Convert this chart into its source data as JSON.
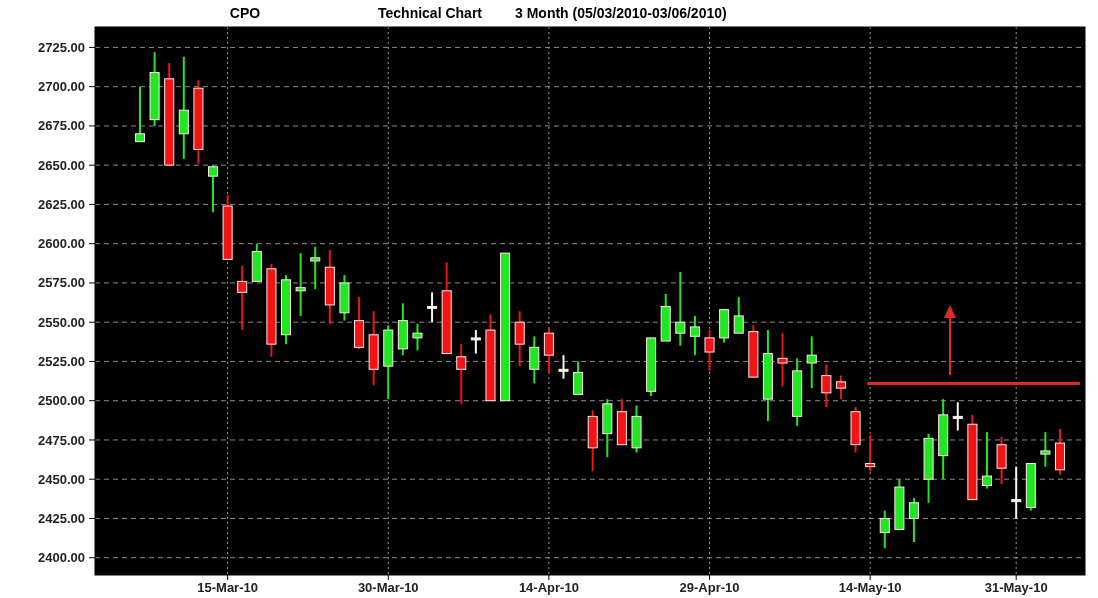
{
  "chart_data": {
    "type": "candlestick",
    "title": "CPO",
    "subtitle": "Technical Chart",
    "annotations": [
      "3 Month (05/03/2010-03/06/2010)"
    ],
    "categories": [
      null,
      null,
      null,
      null,
      null,
      null,
      "15-Mar-10",
      null,
      null,
      null,
      null,
      null,
      null,
      null,
      null,
      null,
      null,
      "30-Mar-10",
      null,
      null,
      null,
      null,
      null,
      null,
      null,
      null,
      null,
      null,
      "14-Apr-10",
      null,
      null,
      null,
      null,
      null,
      null,
      null,
      null,
      null,
      null,
      "29-Apr-10",
      null,
      null,
      null,
      null,
      null,
      null,
      null,
      null,
      null,
      null,
      "14-May-10",
      null,
      null,
      null,
      null,
      null,
      null,
      null,
      null,
      null,
      "31-May-10",
      null,
      null,
      null
    ],
    "ohlc": [
      [
        2665,
        2700,
        2665,
        2670
      ],
      [
        2679,
        2722,
        2675,
        2709
      ],
      [
        2705,
        2715,
        2650,
        2650
      ],
      [
        2670,
        2719,
        2654,
        2685
      ],
      [
        2699,
        2704,
        2651,
        2660
      ],
      [
        2643,
        2650,
        2620,
        2649
      ],
      [
        2624,
        2631,
        2590,
        2590
      ],
      [
        2576,
        2586,
        2545,
        2569
      ],
      [
        2576,
        2600,
        2576,
        2595
      ],
      [
        2584,
        2587,
        2528,
        2536
      ],
      [
        2542,
        2580,
        2536,
        2577
      ],
      [
        2570,
        2594,
        2554,
        2572
      ],
      [
        2589,
        2598,
        2571,
        2591
      ],
      [
        2585,
        2596,
        2549,
        2561
      ],
      [
        2556,
        2580,
        2551,
        2575
      ],
      [
        2551,
        2566,
        2533,
        2534
      ],
      [
        2542,
        2557,
        2510,
        2520
      ],
      [
        2522,
        2548,
        2501,
        2545
      ],
      [
        2533,
        2562,
        2529,
        2551
      ],
      [
        2540,
        2549,
        2532,
        2543
      ],
      [
        2560,
        2569,
        2550,
        2560
      ],
      [
        2570,
        2588,
        2530,
        2530
      ],
      [
        2528,
        2536,
        2498,
        2520
      ],
      [
        2540,
        2545,
        2530,
        2540
      ],
      [
        2545,
        2555,
        2500,
        2500
      ],
      [
        2500,
        2594,
        2500,
        2594
      ],
      [
        2550,
        2557,
        2522,
        2536
      ],
      [
        2520,
        2541,
        2511,
        2534
      ],
      [
        2543,
        2546,
        2518,
        2529
      ],
      [
        2520,
        2529,
        2514,
        2520
      ],
      [
        2504,
        2525,
        2504,
        2518
      ],
      [
        2490,
        2494,
        2455,
        2470
      ],
      [
        2479,
        2501,
        2464,
        2498
      ],
      [
        2493,
        2501,
        2472,
        2472
      ],
      [
        2470,
        2497,
        2467,
        2490
      ],
      [
        2506,
        2540,
        2503,
        2540
      ],
      [
        2538,
        2568,
        2538,
        2560
      ],
      [
        2543,
        2582,
        2535,
        2550
      ],
      [
        2541,
        2554,
        2529,
        2547
      ],
      [
        2540,
        2545,
        2519,
        2531
      ],
      [
        2540,
        2558,
        2537,
        2558
      ],
      [
        2543,
        2566,
        2543,
        2554
      ],
      [
        2544,
        2548,
        2515,
        2515
      ],
      [
        2501,
        2545,
        2487,
        2530
      ],
      [
        2527,
        2543,
        2509,
        2524
      ],
      [
        2490,
        2527,
        2484,
        2519
      ],
      [
        2524,
        2541,
        2508,
        2529
      ],
      [
        2516,
        2523,
        2496,
        2505
      ],
      [
        2512,
        2516,
        2501,
        2508
      ],
      [
        2493,
        2496,
        2467,
        2472
      ],
      [
        2460,
        2478,
        2455,
        2458
      ],
      [
        2416,
        2430,
        2406,
        2425
      ],
      [
        2418,
        2450,
        2418,
        2445
      ],
      [
        2425,
        2438,
        2410,
        2435
      ],
      [
        2450,
        2479,
        2435,
        2476
      ],
      [
        2465,
        2501,
        2450,
        2491
      ],
      [
        2490,
        2499,
        2481,
        2490
      ],
      [
        2485,
        2491,
        2437,
        2437
      ],
      [
        2446,
        2480,
        2444,
        2452
      ],
      [
        2472,
        2477,
        2447,
        2457
      ],
      [
        2437,
        2458,
        2425,
        2437
      ],
      [
        2432,
        2460,
        2430,
        2460
      ],
      [
        2466,
        2480,
        2458,
        2468
      ],
      [
        2473,
        2482,
        2453,
        2456
      ]
    ],
    "ylim": [
      2389,
      2738
    ],
    "yticks": [
      {
        "value": 2400,
        "label": "2400.00"
      },
      {
        "value": 2425,
        "label": "2425.00"
      },
      {
        "value": 2450,
        "label": "2450.00"
      },
      {
        "value": 2475,
        "label": "2475.00"
      },
      {
        "value": 2500,
        "label": "2500.00"
      },
      {
        "value": 2525,
        "label": "2525.00"
      },
      {
        "value": 2550,
        "label": "2550.00"
      },
      {
        "value": 2575,
        "label": "2575.00"
      },
      {
        "value": 2600,
        "label": "2600.00"
      },
      {
        "value": 2625,
        "label": "2625.00"
      },
      {
        "value": 2650,
        "label": "2650.00"
      },
      {
        "value": 2675,
        "label": "2675.00"
      },
      {
        "value": 2700,
        "label": "2700.00"
      },
      {
        "value": 2725,
        "label": "2725.00"
      }
    ],
    "grid": true,
    "ref_lines": [
      {
        "axis": "y",
        "value": 2511,
        "color": "#e02828"
      }
    ]
  }
}
